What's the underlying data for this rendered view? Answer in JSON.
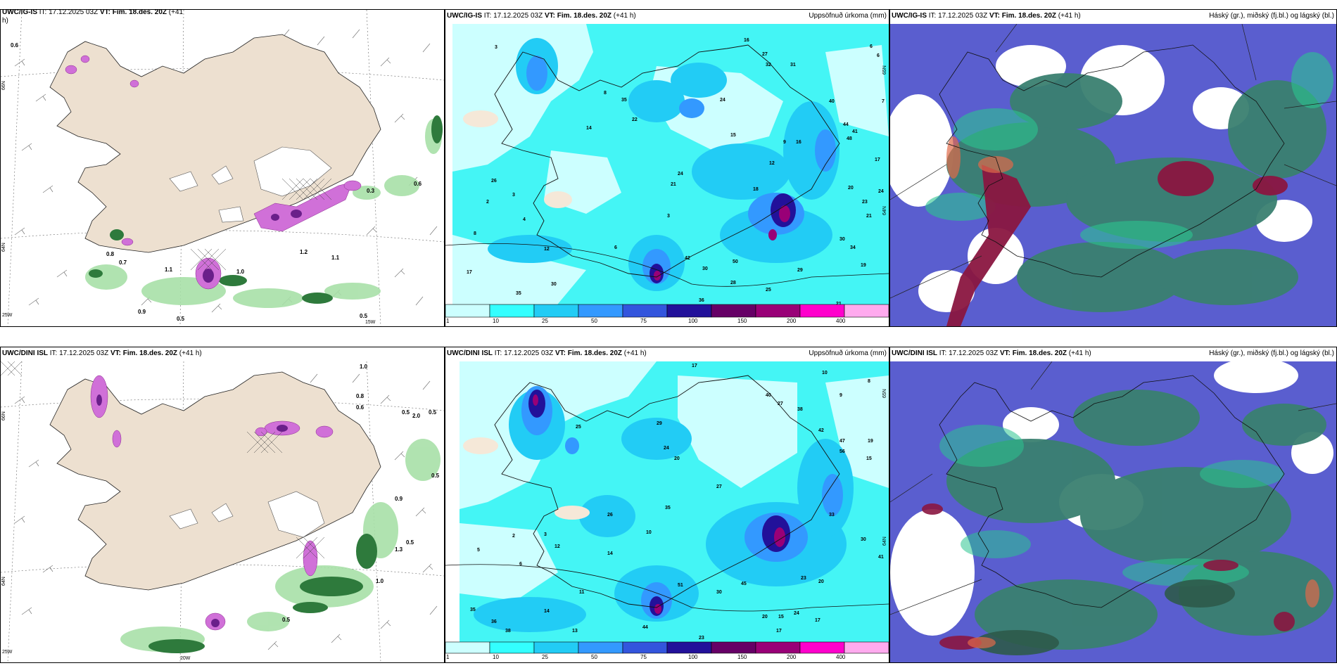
{
  "panels": {
    "top_left": {
      "model": "UWC/IG-IS",
      "it": "IT: 17.12.2025 03Z",
      "vt_label": "VT:",
      "vt": "Fim. 18.des. 20Z",
      "lead": "(+41",
      "lead2": "h)"
    },
    "top_mid": {
      "model": "UWC/IG-IS",
      "it": "IT: 17.12.2025 03Z",
      "vt_label": "VT:",
      "vt": "Fim. 18.des. 20Z",
      "lead": "(+41 h)",
      "right": "Uppsöfnuð úrkoma (mm)"
    },
    "top_right": {
      "model": "UWC/IG-IS",
      "it": "IT: 17.12.2025 03Z",
      "vt_label": "VT:",
      "vt": "Fim. 18.des. 20Z",
      "lead": "(+41 h)",
      "right": "Háský (gr.), miðský (fj.bl.) og lágský (bl.)"
    },
    "bot_left": {
      "model": "UWC/DINI ISL",
      "it": "IT: 17.12.2025 03Z",
      "vt_label": "VT:",
      "vt": "Fim. 18.des. 20Z",
      "lead": "(+41 h)"
    },
    "bot_mid": {
      "model": "UWC/DINI ISL",
      "it": "IT: 17.12.2025 03Z",
      "vt_label": "VT:",
      "vt": "Fim. 18.des. 20Z",
      "lead": "(+41 h)",
      "right": "Uppsöfnuð úrkoma (mm)"
    },
    "bot_right": {
      "model": "UWC/DINI ISL",
      "it": "IT: 17.12.2025 03Z",
      "vt_label": "VT:",
      "vt": "Fim. 18.des. 20Z",
      "lead": "(+41 h)",
      "right": "Háský (gr.), miðský (fj.bl.) og lágský (bl.)"
    }
  },
  "axis_labels": {
    "lat66": "66N",
    "lat64": "64N",
    "lat65": "65N",
    "lon25": "25W",
    "lon15": "15W",
    "lon20": "20W"
  },
  "colorbar": {
    "labels": [
      "1",
      "10",
      "25",
      "50",
      "75",
      "100",
      "150",
      "200",
      "400"
    ],
    "colors": [
      "#ccffff",
      "#33ffff",
      "#22ccf5",
      "#3399ff",
      "#3355dd",
      "#22119a",
      "#660066",
      "#990077",
      "#ff00cc",
      "#ffaaee"
    ]
  },
  "precip_labels_top_left": [
    "0.6",
    "1.1",
    "0.8",
    "1.0",
    "0.9",
    "0.5",
    "0.7",
    "0.5",
    "0.6",
    "1.1",
    "1.2",
    "0.3"
  ],
  "precip_labels_bot_left": [
    "0.5",
    "0.5",
    "0.5",
    "1.0",
    "0.6",
    "0.8",
    "0.9",
    "1.3",
    "0.5",
    "0.5",
    "1.0",
    "2.0"
  ],
  "accum_top": [
    "3",
    "16",
    "27",
    "32",
    "31",
    "6",
    "6",
    "7",
    "48",
    "44",
    "41",
    "17",
    "24",
    "20",
    "21",
    "23",
    "19",
    "34",
    "30",
    "29",
    "25",
    "36",
    "21",
    "42",
    "30",
    "50",
    "28",
    "17",
    "35",
    "30",
    "12",
    "8",
    "2",
    "3",
    "26",
    "14",
    "22",
    "35",
    "8",
    "4",
    "21",
    "24",
    "6",
    "3",
    "9",
    "12",
    "16",
    "18",
    "15",
    "40",
    "24"
  ],
  "accum_bot": [
    "17",
    "10",
    "9",
    "8",
    "40",
    "38",
    "27",
    "42",
    "47",
    "56",
    "19",
    "15",
    "33",
    "30",
    "41",
    "23",
    "20",
    "17",
    "24",
    "15",
    "20",
    "27",
    "44",
    "23",
    "17",
    "13",
    "38",
    "36",
    "35",
    "14",
    "11",
    "5",
    "2",
    "3",
    "6",
    "10",
    "12",
    "14",
    "26",
    "35",
    "51",
    "45",
    "30",
    "29",
    "25",
    "24",
    "20"
  ]
}
